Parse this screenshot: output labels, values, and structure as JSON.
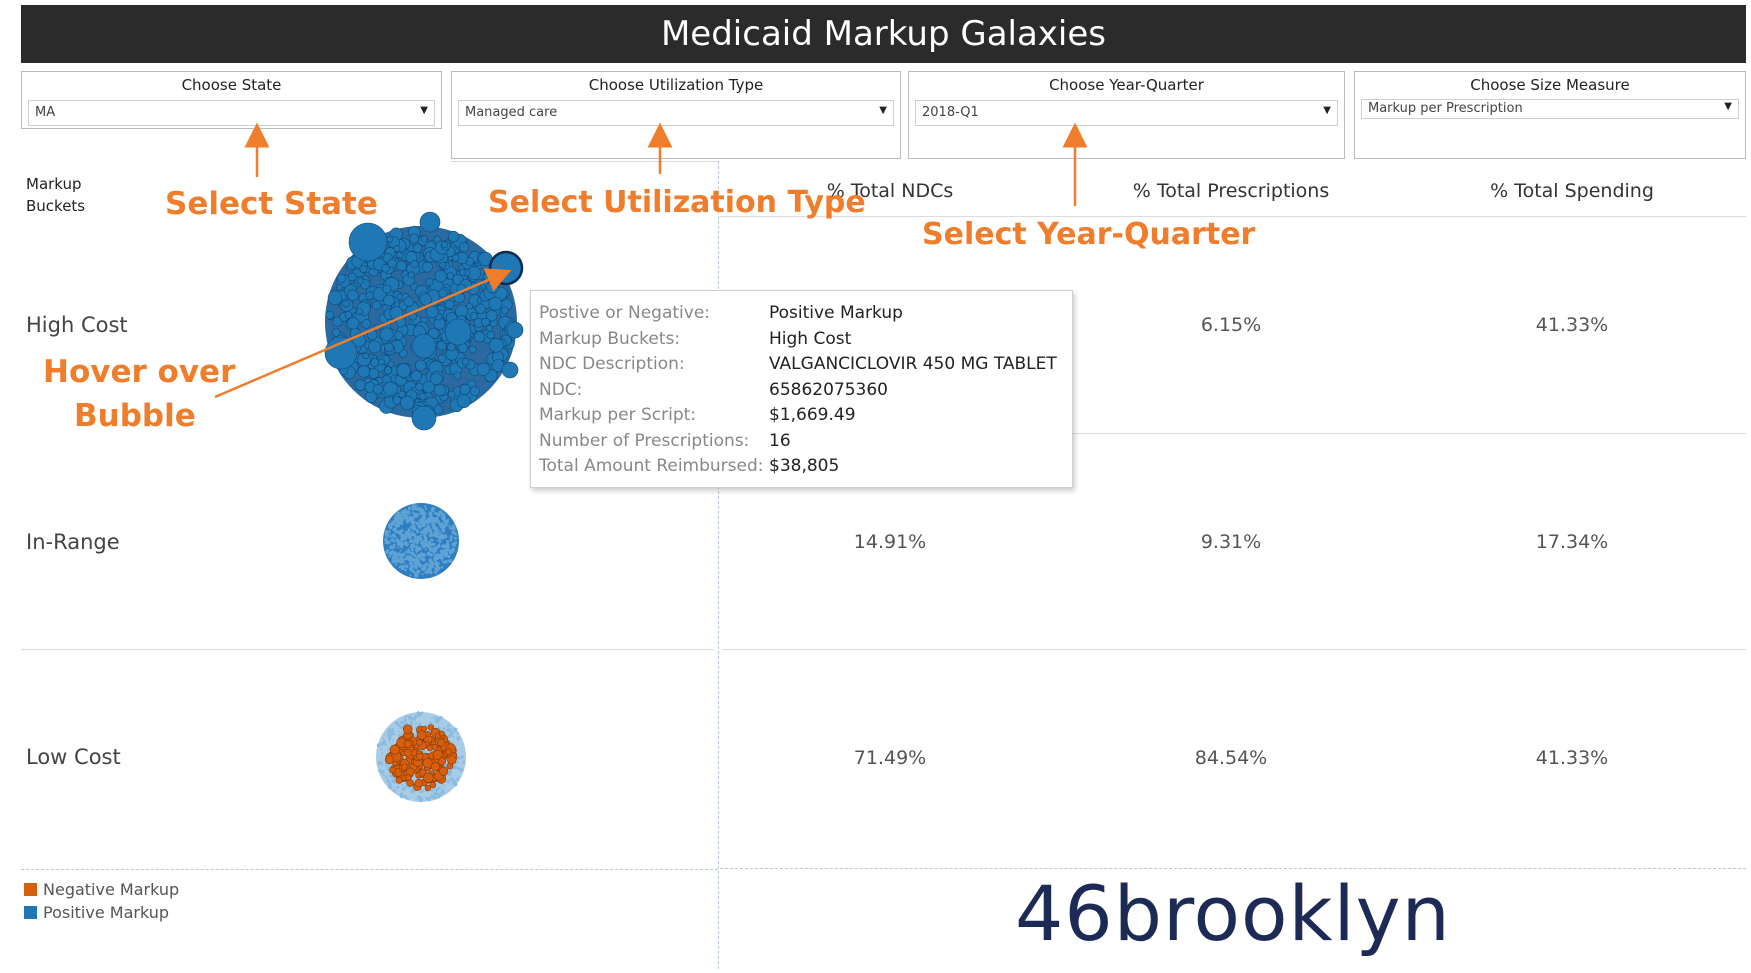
{
  "title": "Medicaid Markup Galaxies",
  "filters": [
    {
      "label": "Choose State",
      "value": "MA"
    },
    {
      "label": "Choose Utilization Type",
      "value": "Managed care"
    },
    {
      "label": "Choose Year-Quarter",
      "value": "2018-Q1"
    },
    {
      "label": "Choose Size Measure",
      "value": "Markup per Prescription"
    }
  ],
  "table": {
    "row_header": "Markup Buckets",
    "columns": [
      "% Total NDCs",
      "% Total Prescriptions",
      "% Total Spending"
    ],
    "rows": [
      {
        "label": "High Cost",
        "values": [
          "",
          "6.15%",
          "41.33%"
        ]
      },
      {
        "label": "In-Range",
        "values": [
          "14.91%",
          "9.31%",
          "17.34%"
        ]
      },
      {
        "label": "Low Cost",
        "values": [
          "71.49%",
          "84.54%",
          "41.33%"
        ]
      }
    ]
  },
  "annotations": {
    "select_state": "Select State",
    "select_utilization": "Select Utilization Type",
    "select_year_quarter": "Select Year-Quarter",
    "hover_line1": "Hover over",
    "hover_line2": "Bubble"
  },
  "tooltip": [
    {
      "key": "Postive or Negative:",
      "value": "Positive Markup"
    },
    {
      "key": "Markup Buckets:",
      "value": "High Cost"
    },
    {
      "key": "NDC Description:",
      "value": "VALGANCICLOVIR 450 MG TABLET"
    },
    {
      "key": "NDC:",
      "value": "65862075360"
    },
    {
      "key": "Markup per Script:",
      "value": "$1,669.49"
    },
    {
      "key": "Number of Prescriptions:",
      "value": "16"
    },
    {
      "key": "Total Amount Reimbursed:",
      "value": "$38,805"
    }
  ],
  "legend": [
    {
      "label": "Negative Markup",
      "color": "#d65f0e"
    },
    {
      "label": "Positive Markup",
      "color": "#1f77b4"
    }
  ],
  "logo": "46brooklyn",
  "colors": {
    "accent": "#ef7d2b",
    "positive": "#1f77b4",
    "negative": "#d65f0e",
    "light_positive": "#a9cce6"
  }
}
